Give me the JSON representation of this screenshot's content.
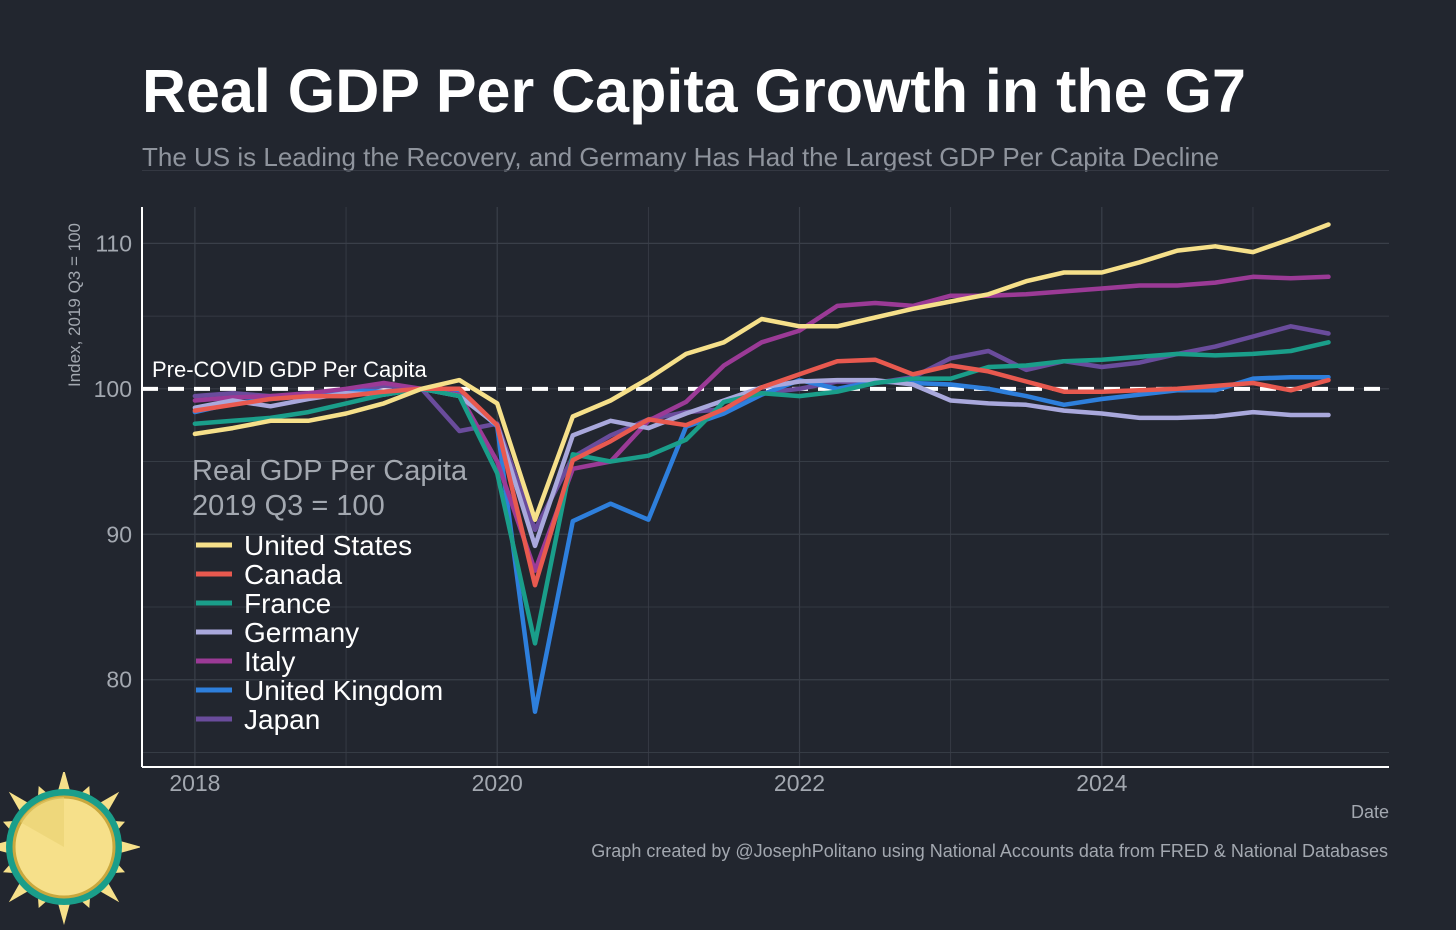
{
  "title": "Real GDP Per Capita Growth in the G7",
  "subtitle": "The US is Leading the Recovery, and Germany Has Had the Largest GDP Per Capita Decline",
  "caption": "Graph created by @JosephPolitano using National Accounts data from FRED & National Databases",
  "colors": {
    "background": "#22262f",
    "grid": "#3a3f49",
    "axis": "#ffffff",
    "reference_line": "#ffffff"
  },
  "chart_data": {
    "type": "line",
    "title": "Real GDP Per Capita Growth in the G7",
    "subtitle": "The US is Leading the Recovery, and Germany Has Had the Largest GDP Per Capita Decline",
    "xlabel": "Date",
    "ylabel": "Index, 2019 Q3 = 100",
    "xlim": [
      2017.65,
      2025.9
    ],
    "ylim": [
      74,
      112.5
    ],
    "x_ticks": [
      2018,
      2020,
      2022,
      2024
    ],
    "x_tick_labels": [
      "2018",
      "2020",
      "2022",
      "2024"
    ],
    "y_ticks": [
      80,
      90,
      100,
      110
    ],
    "y_tick_labels": [
      "80",
      "90",
      "100",
      "110"
    ],
    "grid": true,
    "reference_line": {
      "y": 100,
      "style": "dashed",
      "label": "Pre-COVID GDP Per Capita"
    },
    "legend": {
      "title_lines": [
        "Real GDP Per Capita",
        "2019 Q3 = 100"
      ],
      "placement": "bottom-left"
    },
    "quarters": [
      "2018 Q1",
      "2018 Q2",
      "2018 Q3",
      "2018 Q4",
      "2019 Q1",
      "2019 Q2",
      "2019 Q3",
      "2019 Q4",
      "2020 Q1",
      "2020 Q2",
      "2020 Q3",
      "2020 Q4",
      "2021 Q1",
      "2021 Q2",
      "2021 Q3",
      "2021 Q4",
      "2022 Q1",
      "2022 Q2",
      "2022 Q3",
      "2022 Q4",
      "2023 Q1",
      "2023 Q2",
      "2023 Q3",
      "2023 Q4",
      "2024 Q1",
      "2024 Q2",
      "2024 Q3",
      "2024 Q4",
      "2025 Q1",
      "2025 Q2",
      "2025 Q3"
    ],
    "x": [
      2018.0,
      2018.25,
      2018.5,
      2018.75,
      2019.0,
      2019.25,
      2019.5,
      2019.75,
      2020.0,
      2020.25,
      2020.5,
      2020.75,
      2021.0,
      2021.25,
      2021.5,
      2021.75,
      2022.0,
      2022.25,
      2022.5,
      2022.75,
      2023.0,
      2023.25,
      2023.5,
      2023.75,
      2024.0,
      2024.25,
      2024.5,
      2024.75,
      2025.0,
      2025.25,
      2025.5
    ],
    "series": [
      {
        "name": "United States",
        "color": "#f6e08a",
        "values": [
          96.9,
          97.3,
          97.8,
          97.8,
          98.3,
          99.0,
          100.0,
          100.6,
          99.0,
          91.0,
          98.1,
          99.2,
          100.7,
          102.4,
          103.2,
          104.8,
          104.3,
          104.3,
          104.9,
          105.5,
          106.0,
          106.5,
          107.4,
          108.0,
          108.0,
          108.7,
          109.5,
          109.8,
          109.4,
          110.3,
          111.3
        ]
      },
      {
        "name": "Canada",
        "color": "#e8594f",
        "values": [
          98.5,
          98.9,
          99.3,
          99.5,
          99.5,
          99.8,
          100.0,
          100.0,
          97.5,
          86.5,
          95.1,
          96.4,
          97.9,
          97.5,
          98.6,
          100.1,
          101.0,
          101.9,
          102.0,
          101.0,
          101.6,
          101.2,
          100.5,
          99.8,
          99.8,
          99.9,
          100.0,
          100.2,
          100.4,
          99.9,
          100.6
        ]
      },
      {
        "name": "France",
        "color": "#1a9e8a",
        "values": [
          97.6,
          97.8,
          98.0,
          98.4,
          99.0,
          99.6,
          100.0,
          99.5,
          94.2,
          82.5,
          95.5,
          95.0,
          95.4,
          96.5,
          99.1,
          99.7,
          99.5,
          99.8,
          100.4,
          100.7,
          100.7,
          101.5,
          101.6,
          101.9,
          102.0,
          102.2,
          102.4,
          102.3,
          102.4,
          102.6,
          103.2
        ]
      },
      {
        "name": "Germany",
        "color": "#a9a8dc",
        "values": [
          98.7,
          99.2,
          98.8,
          99.3,
          99.7,
          99.6,
          100.0,
          99.5,
          97.5,
          89.2,
          96.8,
          97.8,
          97.3,
          98.3,
          99.2,
          100.1,
          100.5,
          100.6,
          100.6,
          100.3,
          99.2,
          99.0,
          98.9,
          98.5,
          98.3,
          98.0,
          98.0,
          98.1,
          98.4,
          98.2,
          98.2
        ]
      },
      {
        "name": "Italy",
        "color": "#9b3a96",
        "values": [
          99.2,
          99.4,
          99.5,
          99.7,
          100.0,
          100.4,
          100.0,
          99.6,
          95.0,
          87.5,
          94.5,
          95.0,
          97.8,
          99.1,
          101.6,
          103.2,
          104.0,
          105.7,
          105.9,
          105.7,
          106.4,
          106.4,
          106.5,
          106.7,
          106.9,
          107.1,
          107.1,
          107.3,
          107.7,
          107.6,
          107.7
        ]
      },
      {
        "name": "United Kingdom",
        "color": "#2e7fdc",
        "values": [
          98.4,
          99.0,
          99.3,
          99.5,
          99.9,
          99.8,
          100.0,
          99.8,
          97.4,
          77.8,
          90.9,
          92.1,
          91.0,
          97.4,
          98.3,
          99.6,
          100.6,
          100.0,
          100.5,
          100.4,
          100.3,
          100.0,
          99.5,
          98.9,
          99.3,
          99.6,
          99.9,
          99.9,
          100.7,
          100.8,
          100.8
        ]
      },
      {
        "name": "Japan",
        "color": "#6a4c9c",
        "values": [
          99.5,
          99.7,
          99.5,
          99.6,
          99.8,
          100.2,
          100.0,
          97.1,
          97.6,
          90.3,
          95.3,
          96.8,
          97.9,
          98.4,
          98.6,
          99.7,
          100.0,
          100.5,
          100.4,
          100.8,
          102.1,
          102.6,
          101.3,
          101.9,
          101.5,
          101.8,
          102.4,
          102.9,
          103.6,
          104.3,
          103.8
        ]
      }
    ]
  }
}
